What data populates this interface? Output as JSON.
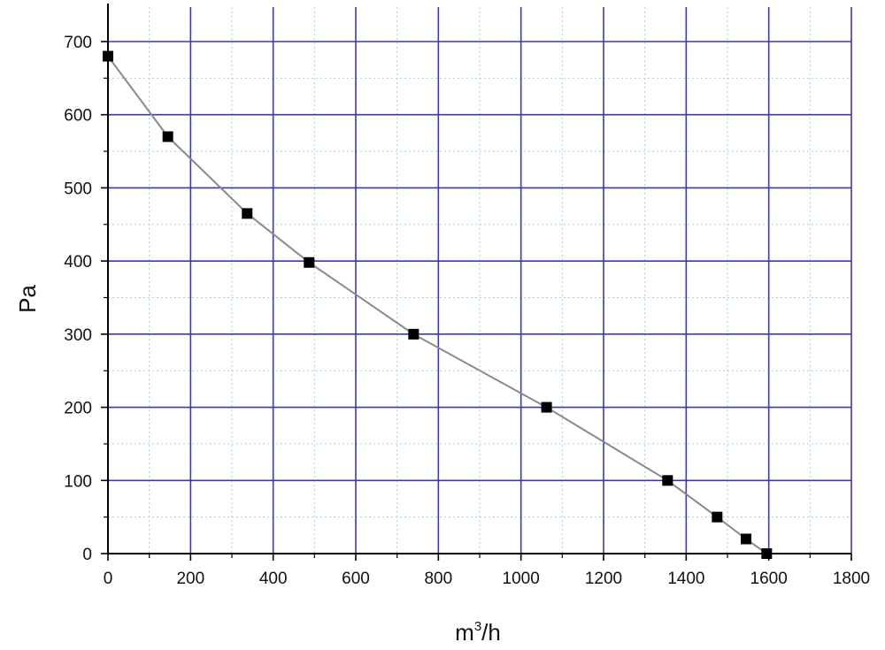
{
  "chart_data": {
    "type": "line",
    "title": "",
    "xlabel": {
      "base": "m",
      "sup": "3",
      "rest": "/h"
    },
    "ylabel": "Pa",
    "xlim": [
      0,
      1800
    ],
    "ylim": [
      0,
      700
    ],
    "xticks": [
      0,
      200,
      400,
      600,
      800,
      1000,
      1200,
      1400,
      1600,
      1800
    ],
    "yticks": [
      0,
      100,
      200,
      300,
      400,
      500,
      600,
      700
    ],
    "x_minor_step": 100,
    "y_minor_step": 50,
    "grid": true,
    "colors": {
      "major_grid": "#3a3aaa",
      "minor_grid": "#9ee09e",
      "line": "#8a8a8a",
      "marker": "#000000",
      "axis": "#000000"
    },
    "series": [
      {
        "marker": "square",
        "x": [
          0,
          145,
          337,
          487,
          740,
          1062,
          1355,
          1475,
          1545,
          1595
        ],
        "y": [
          680,
          570,
          465,
          398,
          300,
          200,
          100,
          50,
          20,
          0
        ]
      }
    ]
  }
}
